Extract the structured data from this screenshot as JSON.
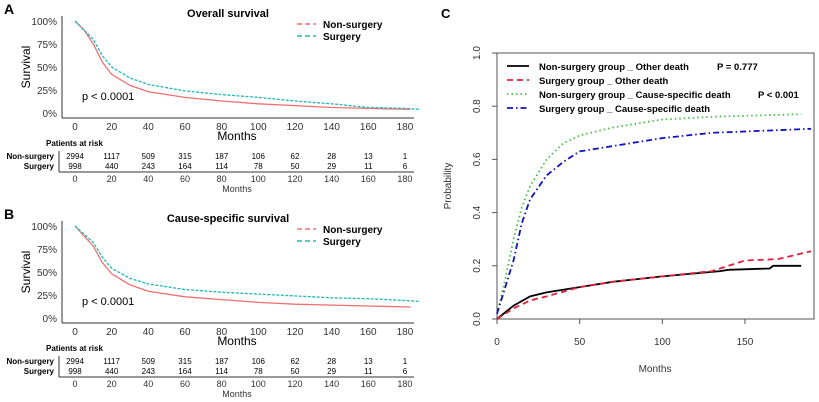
{
  "chart_data": [
    {
      "panel_label": "A",
      "type": "line",
      "title": "Overall survival",
      "xlabel": "Months",
      "ylabel": "Survival",
      "xlim": [
        0,
        185
      ],
      "ylim": [
        0,
        100
      ],
      "xticks": [
        "0",
        "20",
        "40",
        "60",
        "80",
        "100",
        "120",
        "140",
        "160",
        "180"
      ],
      "yticks": [
        "0%",
        "25%",
        "50%",
        "75%",
        "100%"
      ],
      "annotation": "p < 0.0001",
      "legend_position": "top-right",
      "series": [
        {
          "name": "Non-surgery",
          "color": "#f07070",
          "x": [
            0,
            5,
            10,
            15,
            20,
            30,
            40,
            60,
            80,
            100,
            120,
            140,
            160,
            183
          ],
          "y": [
            100,
            90,
            75,
            55,
            42,
            30,
            23,
            17,
            13,
            10,
            8,
            6,
            5,
            4
          ]
        },
        {
          "name": "Surgery",
          "color": "#20b8b8",
          "x": [
            0,
            10,
            15,
            20,
            30,
            40,
            60,
            80,
            100,
            120,
            140,
            160,
            180,
            188
          ],
          "y": [
            100,
            80,
            62,
            50,
            38,
            31,
            24,
            20,
            17,
            13,
            10,
            6,
            5,
            4
          ]
        }
      ],
      "risk_table": {
        "title": "Patients at risk",
        "xlabel": "Months",
        "rows": [
          {
            "label": "Non-surgery",
            "values": [
              "2994",
              "1117",
              "509",
              "315",
              "187",
              "106",
              "62",
              "28",
              "13",
              "1"
            ]
          },
          {
            "label": "Surgery",
            "values": [
              "998",
              "440",
              "243",
              "164",
              "114",
              "78",
              "50",
              "29",
              "11",
              "6"
            ]
          }
        ]
      }
    },
    {
      "panel_label": "B",
      "type": "line",
      "title": "Cause-specific survival",
      "xlabel": "Months",
      "ylabel": "Survival",
      "xlim": [
        0,
        185
      ],
      "ylim": [
        0,
        100
      ],
      "xticks": [
        "0",
        "20",
        "40",
        "60",
        "80",
        "100",
        "120",
        "140",
        "160",
        "180"
      ],
      "yticks": [
        "0%",
        "25%",
        "50%",
        "75%",
        "100%"
      ],
      "annotation": "p < 0.0001",
      "legend_position": "top-right",
      "series": [
        {
          "name": "Non-surgery",
          "color": "#f07070",
          "x": [
            0,
            10,
            15,
            20,
            30,
            40,
            60,
            80,
            100,
            120,
            140,
            160,
            183
          ],
          "y": [
            100,
            78,
            60,
            48,
            36,
            29,
            23,
            20,
            17,
            15,
            14,
            13,
            12
          ]
        },
        {
          "name": "Surgery",
          "color": "#20b8b8",
          "x": [
            0,
            10,
            15,
            20,
            30,
            40,
            60,
            80,
            100,
            120,
            140,
            160,
            180,
            188
          ],
          "y": [
            100,
            82,
            66,
            54,
            43,
            37,
            31,
            28,
            26,
            24,
            22,
            21,
            19,
            18
          ]
        }
      ],
      "risk_table": {
        "title": "Patients at risk",
        "xlabel": "Months",
        "rows": [
          {
            "label": "Non-surgery",
            "values": [
              "2994",
              "1117",
              "509",
              "315",
              "187",
              "106",
              "62",
              "28",
              "13",
              "1"
            ]
          },
          {
            "label": "Surgery",
            "values": [
              "998",
              "440",
              "243",
              "164",
              "114",
              "78",
              "50",
              "29",
              "11",
              "6"
            ]
          }
        ]
      }
    },
    {
      "panel_label": "C",
      "type": "line",
      "xlabel": "Months",
      "ylabel": "Probability",
      "xlim": [
        0,
        190
      ],
      "ylim": [
        0,
        1
      ],
      "xticks": [
        "0",
        "50",
        "100",
        "150"
      ],
      "yticks": [
        "0.0",
        "0.2",
        "0.4",
        "0.6",
        "0.8",
        "1.0"
      ],
      "legend_position": "top-left",
      "series": [
        {
          "name": "Non-surgery group _ Other death",
          "pvalue": "P = 0.777",
          "color": "#000000",
          "dash": "solid",
          "x": [
            0,
            10,
            20,
            30,
            50,
            70,
            100,
            135,
            140,
            165,
            167,
            184
          ],
          "y": [
            0,
            0.05,
            0.085,
            0.1,
            0.12,
            0.14,
            0.16,
            0.18,
            0.185,
            0.19,
            0.2,
            0.2
          ]
        },
        {
          "name": "Surgery group _ Other death",
          "color": "#e0203a",
          "dash": "dashed",
          "x": [
            0,
            10,
            20,
            30,
            50,
            70,
            100,
            130,
            150,
            170,
            190
          ],
          "y": [
            0,
            0.04,
            0.07,
            0.085,
            0.12,
            0.14,
            0.16,
            0.18,
            0.22,
            0.225,
            0.255
          ]
        },
        {
          "name": "Non-surgery group _ Cause-specific death",
          "pvalue": "P < 0.001",
          "color": "#40c040",
          "dash": "dotted",
          "x": [
            0,
            5,
            10,
            15,
            20,
            30,
            40,
            50,
            70,
            100,
            130,
            184
          ],
          "y": [
            0.02,
            0.15,
            0.3,
            0.42,
            0.5,
            0.6,
            0.66,
            0.69,
            0.72,
            0.75,
            0.76,
            0.77
          ]
        },
        {
          "name": "Surgery group _ Cause-specific death",
          "color": "#1010c0",
          "dash": "dashdot",
          "x": [
            0,
            5,
            10,
            15,
            20,
            30,
            40,
            50,
            70,
            100,
            130,
            150,
            190
          ],
          "y": [
            0.02,
            0.12,
            0.22,
            0.36,
            0.45,
            0.54,
            0.59,
            0.63,
            0.65,
            0.68,
            0.7,
            0.705,
            0.715
          ]
        }
      ]
    }
  ]
}
